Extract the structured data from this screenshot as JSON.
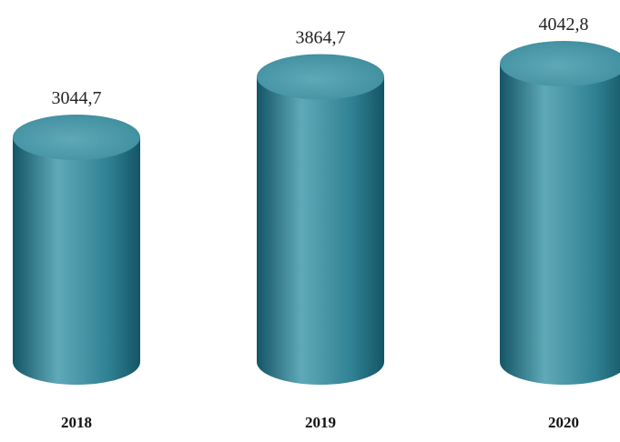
{
  "chart_data": {
    "type": "bar",
    "bar_shape": "cylinder",
    "categories": [
      "2018",
      "2019",
      "2020"
    ],
    "values": [
      3044.7,
      3864.7,
      4042.8
    ],
    "data_labels": [
      "3044,7",
      "3864,7",
      "4042,8"
    ],
    "title": "",
    "xlabel": "",
    "ylabel": "",
    "grid": false,
    "legend": "none",
    "colors": {
      "bar_dark": "#145566",
      "bar_mid": "#2f8193",
      "bar_light": "#5fa9b8",
      "top_face": "#3a8a9b"
    }
  }
}
